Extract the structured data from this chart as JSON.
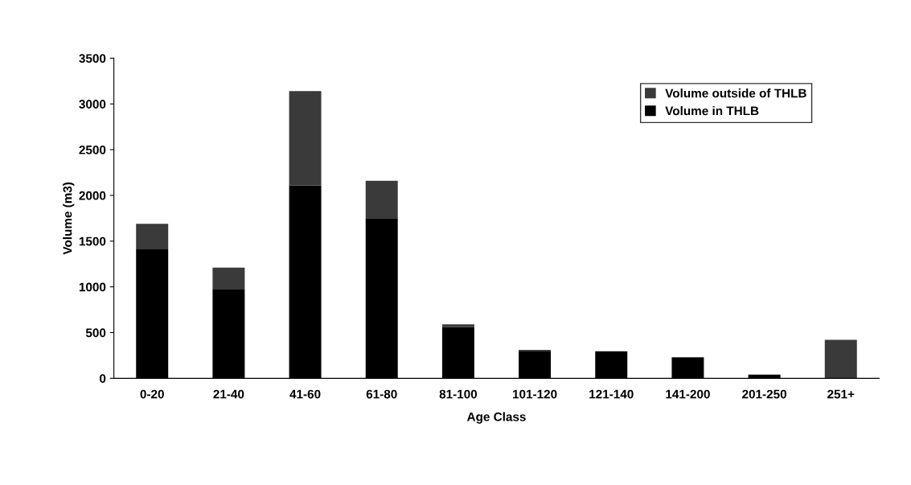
{
  "chart_data": {
    "type": "bar",
    "stacked": true,
    "xlabel": "Age Class",
    "ylabel": "Volume (m3)",
    "categories": [
      "0-20",
      "21-40",
      "41-60",
      "61-80",
      "81-100",
      "101-120",
      "121-140",
      "141-200",
      "201-250",
      "251+"
    ],
    "series": [
      {
        "name": "Volume in THLB",
        "color": "#000000",
        "values": [
          1410,
          970,
          2110,
          1750,
          560,
          300,
          295,
          230,
          40,
          0
        ]
      },
      {
        "name": "Volume outside of THLB",
        "color": "#3a3a3a",
        "values": [
          280,
          240,
          1030,
          410,
          30,
          10,
          0,
          0,
          0,
          420
        ]
      }
    ],
    "ylim": [
      0,
      3500
    ],
    "yticks": [
      0,
      500,
      1000,
      1500,
      2000,
      2500,
      3000,
      3500
    ],
    "grid": false,
    "legend": "top right"
  }
}
